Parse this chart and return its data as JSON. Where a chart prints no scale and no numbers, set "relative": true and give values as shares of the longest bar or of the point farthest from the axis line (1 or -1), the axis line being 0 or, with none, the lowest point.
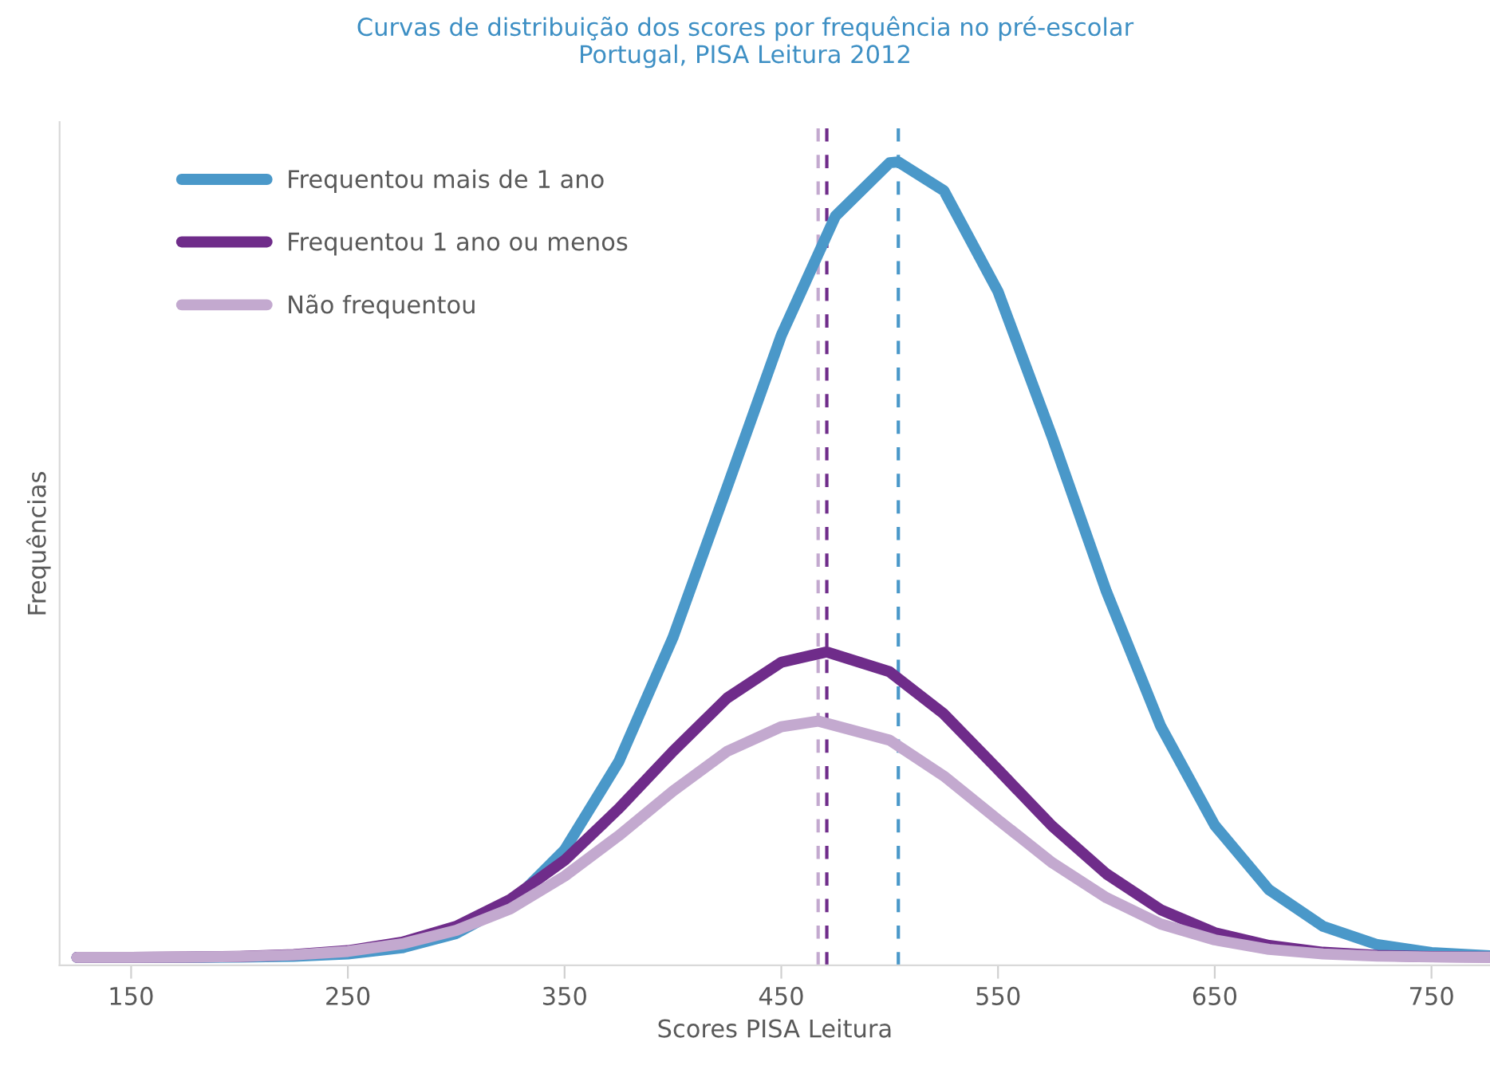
{
  "chart_data": {
    "type": "line",
    "title": "Curvas de distribuição dos scores por frequência no pré-escolar\nPortugal, PISA Leitura 2012",
    "xlabel": "Scores PISA Leitura",
    "ylabel": "Frequências",
    "relative": true,
    "xlim": [
      117,
      777
    ],
    "xticks": [
      150,
      250,
      350,
      450,
      550,
      650,
      750
    ],
    "grid": false,
    "legend": "top left",
    "marker": "none",
    "line_style": "solid",
    "series": [
      {
        "name": "Frequentou mais de 1 ano",
        "color": "#4a98c9",
        "x": [
          125,
          150,
          175,
          200,
          225,
          250,
          275,
          300,
          325,
          350,
          375,
          400,
          425,
          450,
          475,
          500,
          504,
          525,
          550,
          575,
          600,
          625,
          650,
          675,
          700,
          725,
          750,
          777
        ],
        "values": [
          0,
          0,
          0.0001,
          0.0004,
          0.0014,
          0.0043,
          0.012,
          0.03,
          0.067,
          0.135,
          0.246,
          0.402,
          0.591,
          0.782,
          0.932,
          0.999,
          1,
          0.964,
          0.837,
          0.654,
          0.46,
          0.291,
          0.166,
          0.085,
          0.039,
          0.016,
          0.006,
          0.002
        ]
      },
      {
        "name": "Frequentou 1 ano ou menos",
        "color": "#6f2c8a",
        "x": [
          125,
          150,
          175,
          200,
          225,
          250,
          275,
          300,
          325,
          350,
          375,
          400,
          425,
          450,
          471,
          500,
          525,
          550,
          575,
          600,
          625,
          650,
          675,
          700,
          725,
          750,
          777
        ],
        "values": [
          0,
          0.0001,
          0.0004,
          0.0012,
          0.0034,
          0.0084,
          0.019,
          0.039,
          0.073,
          0.122,
          0.187,
          0.259,
          0.326,
          0.371,
          0.384,
          0.359,
          0.306,
          0.236,
          0.165,
          0.105,
          0.06,
          0.031,
          0.015,
          0.0064,
          0.0025,
          0.0009,
          0.0003
        ]
      },
      {
        "name": "Não frequentou",
        "color": "#c3a9cf",
        "x": [
          125,
          150,
          175,
          200,
          225,
          250,
          275,
          300,
          325,
          350,
          375,
          400,
          425,
          450,
          467,
          500,
          525,
          550,
          575,
          600,
          625,
          650,
          675,
          700,
          725,
          750,
          777
        ],
        "values": [
          0,
          0.0001,
          0.0004,
          0.0011,
          0.0031,
          0.0075,
          0.017,
          0.034,
          0.061,
          0.102,
          0.153,
          0.209,
          0.259,
          0.29,
          0.297,
          0.273,
          0.228,
          0.173,
          0.119,
          0.075,
          0.042,
          0.022,
          0.01,
          0.0043,
          0.0016,
          0.0006,
          0.0002
        ]
      }
    ],
    "ref_lines": [
      {
        "axis": "x",
        "value": 504,
        "color": "#4a98c9",
        "line_style": "dashed"
      },
      {
        "axis": "x",
        "value": 471,
        "color": "#6f2c8a",
        "line_style": "dashed"
      },
      {
        "axis": "x",
        "value": 467,
        "color": "#c3a9cf",
        "line_style": "dashed"
      }
    ]
  }
}
